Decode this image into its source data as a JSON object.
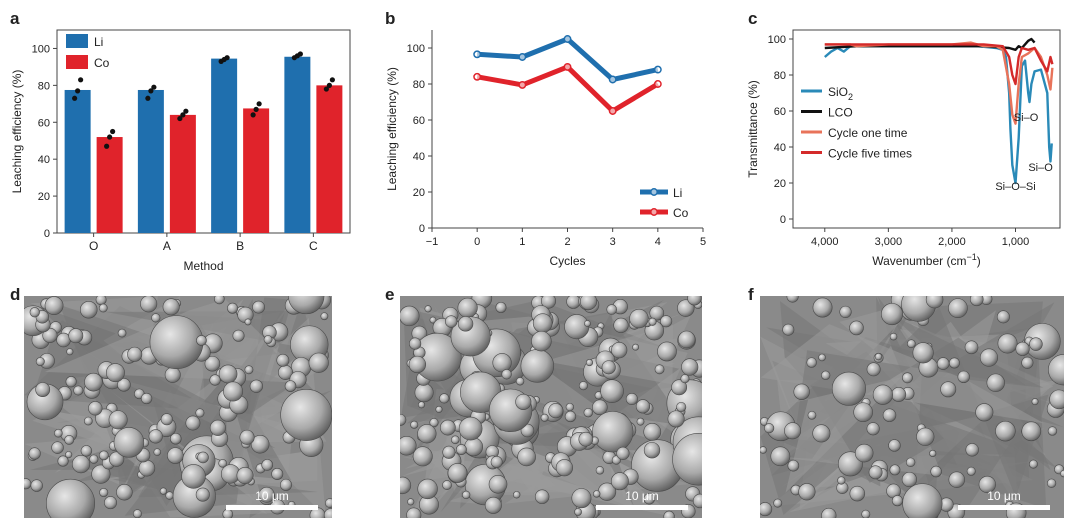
{
  "panels": {
    "a": {
      "label": "a"
    },
    "b": {
      "label": "b"
    },
    "c": {
      "label": "c"
    },
    "d": {
      "label": "d",
      "scale_bar": "10 μm"
    },
    "e": {
      "label": "e",
      "scale_bar": "10 μm"
    },
    "f": {
      "label": "f",
      "scale_bar": "10 μm"
    }
  },
  "colors": {
    "li": "#1f6fae",
    "co": "#e0232b",
    "sio2": "#2a8ab8",
    "lco": "#111111",
    "cycle1": "#e8735a",
    "cycle5": "#d42a2a"
  },
  "chart_data": [
    {
      "type": "bar",
      "panel": "a",
      "categories": [
        "O",
        "A",
        "B",
        "C"
      ],
      "series": [
        {
          "name": "Li",
          "values": [
            77.5,
            77.5,
            94.5,
            95.5
          ],
          "points": [
            [
              73,
              77,
              83
            ],
            [
              73,
              77,
              79
            ],
            [
              93,
              94,
              95
            ],
            [
              95,
              96,
              97
            ]
          ]
        },
        {
          "name": "Co",
          "values": [
            52,
            64,
            67.5,
            80
          ],
          "points": [
            [
              47,
              52,
              55
            ],
            [
              62,
              64,
              66
            ],
            [
              64,
              67,
              70
            ],
            [
              78,
              80,
              83
            ]
          ]
        }
      ],
      "xlabel": "Method",
      "ylabel": "Leaching efficiency (%)",
      "ylim": [
        0,
        110
      ],
      "yticks": [
        0,
        20,
        40,
        60,
        80,
        100
      ],
      "legend": "top-left"
    },
    {
      "type": "line",
      "panel": "b",
      "x": [
        0,
        1,
        2,
        3,
        4
      ],
      "series": [
        {
          "name": "Li",
          "values": [
            96.5,
            95,
            105,
            82.5,
            88
          ]
        },
        {
          "name": "Co",
          "values": [
            84,
            79.5,
            89.5,
            65,
            80
          ]
        }
      ],
      "xlabel": "Cycles",
      "ylabel": "Leaching efficiency (%)",
      "xlim": [
        -1,
        5
      ],
      "xticks": [
        -1,
        0,
        1,
        2,
        3,
        4,
        5
      ],
      "ylim": [
        0,
        110
      ],
      "yticks": [
        0,
        20,
        40,
        60,
        80,
        100
      ],
      "legend": "bottom-right"
    },
    {
      "type": "line",
      "panel": "c",
      "series": [
        {
          "name": "SiO2",
          "name_main": "SiO",
          "name_sub": "2",
          "x": [
            4000,
            3900,
            3800,
            3700,
            3600,
            3500,
            3000,
            2500,
            2000,
            1600,
            1300,
            1200,
            1150,
            1100,
            1080,
            1050,
            1000,
            950,
            900,
            850,
            800,
            780,
            750,
            700,
            600,
            500,
            470,
            450,
            430
          ],
          "y": [
            90,
            93,
            95,
            93,
            96,
            96,
            96,
            96,
            96,
            96,
            95,
            94,
            90,
            70,
            50,
            30,
            20,
            45,
            85,
            88,
            70,
            65,
            75,
            82,
            83,
            70,
            40,
            32,
            42
          ]
        },
        {
          "name": "LCO",
          "x": [
            4000,
            3500,
            3000,
            2500,
            2000,
            1500,
            1100,
            1000,
            950,
            900,
            850,
            800,
            750,
            700
          ],
          "y": [
            95,
            96,
            96,
            96,
            96,
            96,
            95,
            94,
            96,
            95,
            97,
            99,
            100,
            98
          ]
        },
        {
          "name": "Cycle one time",
          "x": [
            4000,
            3600,
            3500,
            3000,
            2500,
            2000,
            1700,
            1500,
            1300,
            1200,
            1100,
            1050,
            1000,
            950,
            900,
            800,
            700,
            600,
            500,
            450,
            420
          ],
          "y": [
            97,
            97,
            96,
            97,
            97,
            97,
            98,
            96,
            96,
            94,
            75,
            58,
            53,
            75,
            90,
            92,
            95,
            90,
            80,
            72,
            84
          ]
        },
        {
          "name": "Cycle five times",
          "x": [
            4000,
            3500,
            3000,
            2500,
            2000,
            1500,
            1200,
            1100,
            1050,
            1000,
            950,
            900,
            800,
            700,
            600,
            500,
            450,
            420
          ],
          "y": [
            97,
            97,
            97,
            97,
            97,
            97,
            96,
            90,
            80,
            75,
            90,
            95,
            94,
            95,
            88,
            82,
            90,
            86
          ]
        }
      ],
      "annotations": [
        "Si–O–Si",
        "Si–O",
        "Si–O"
      ],
      "xlabel_main": "Wavenumber (cm",
      "xlabel_sup": "−1",
      "xlabel_end": ")",
      "ylabel": "Transmittance (%)",
      "xlim": [
        4500,
        300
      ],
      "xticks": [
        4000,
        3000,
        2000,
        1000
      ],
      "xtick_labels": [
        "4,000",
        "3,000",
        "2,000",
        "1,000"
      ],
      "ylim": [
        -5,
        105
      ],
      "yticks": [
        0,
        20,
        40,
        60,
        80,
        100
      ],
      "legend": "left"
    }
  ]
}
